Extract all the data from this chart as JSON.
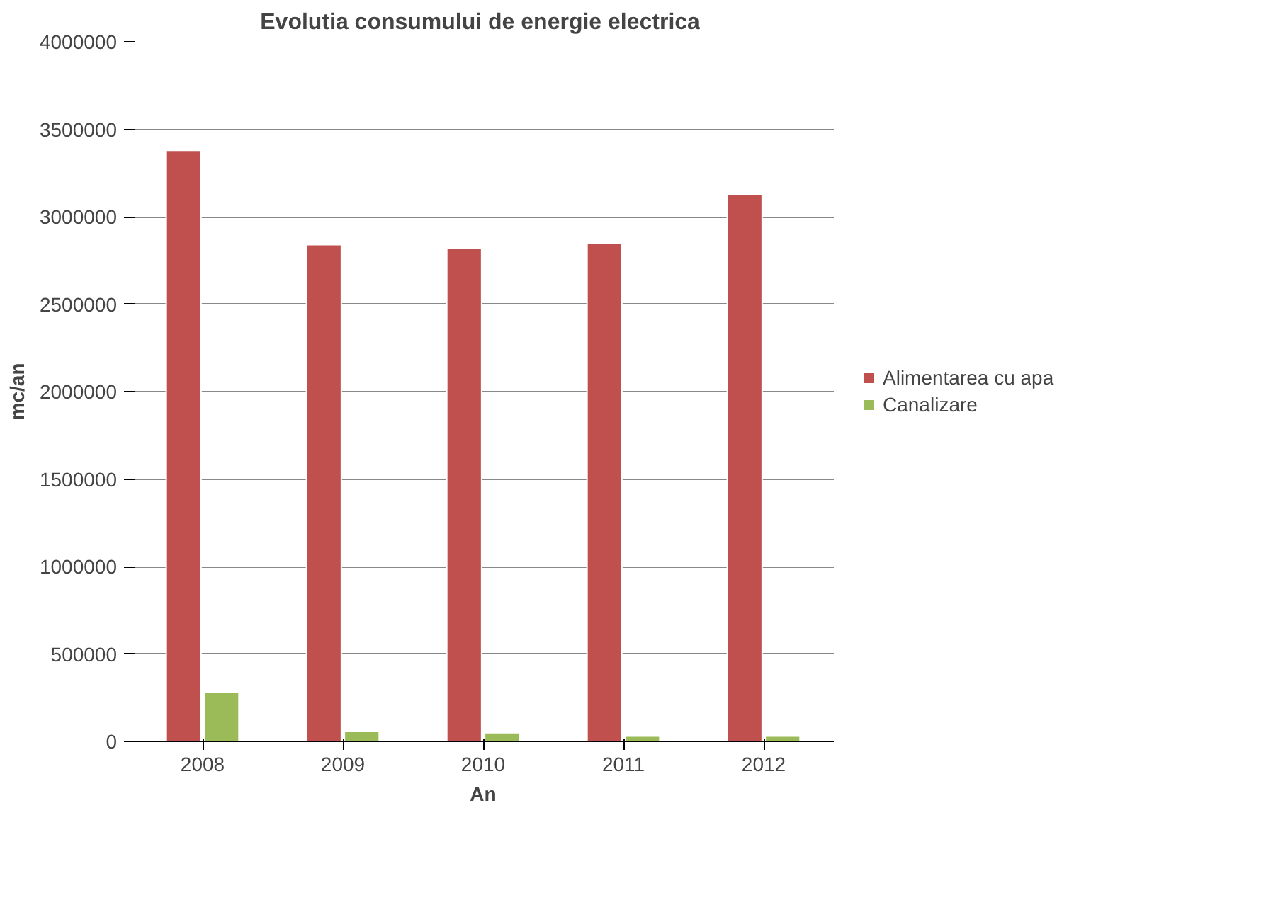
{
  "chart_data": {
    "type": "bar",
    "title": "Evolutia consumului  de energie electrica",
    "xlabel": "An",
    "ylabel": "mc/an",
    "categories": [
      "2008",
      "2009",
      "2010",
      "2011",
      "2012"
    ],
    "series": [
      {
        "name": "Alimentarea cu apa",
        "color": "#c0504d",
        "values": [
          3380000,
          2840000,
          2820000,
          2850000,
          3130000
        ]
      },
      {
        "name": "Canalizare",
        "color": "#9bbb59",
        "values": [
          280000,
          60000,
          50000,
          30000,
          30000
        ]
      }
    ],
    "ylim": [
      0,
      4000000
    ],
    "yticks": [
      0,
      500000,
      1000000,
      1500000,
      2000000,
      2500000,
      3000000,
      3500000,
      4000000
    ],
    "grid": "y",
    "legend": "right"
  }
}
